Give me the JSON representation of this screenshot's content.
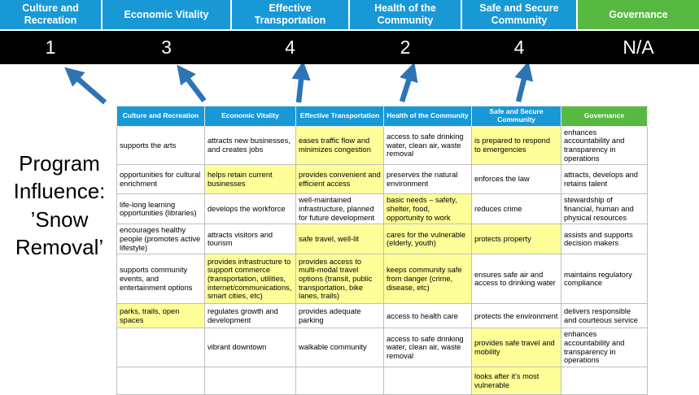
{
  "title": "Program Influence: ’Snow Removal’",
  "colors": {
    "header_blue": "#1899D6",
    "header_green": "#58B942",
    "score_bar_bg": "#000000",
    "highlight_yellow": "#FFFF99",
    "arrow_blue": "#2E74B5",
    "table_border": "#BFBFBF"
  },
  "summary": {
    "columns": [
      {
        "id": "culture-and-recreation",
        "label": "Culture and Recreation",
        "score": "1",
        "theme": "blue"
      },
      {
        "id": "economic-vitality",
        "label": "Economic Vitality",
        "score": "3",
        "theme": "blue"
      },
      {
        "id": "effective-transportation",
        "label": "Effective Transportation",
        "score": "4",
        "theme": "blue"
      },
      {
        "id": "health-of-the-community",
        "label": "Health of the Community",
        "score": "2",
        "theme": "blue"
      },
      {
        "id": "safe-and-secure-community",
        "label": "Safe and Secure Community",
        "score": "4",
        "theme": "blue"
      },
      {
        "id": "governance",
        "label": "Governance",
        "score": "N/A",
        "theme": "green"
      }
    ]
  },
  "matrix": {
    "headers": [
      {
        "id": "culture-and-recreation",
        "label": "Culture and Recreation",
        "theme": "blue"
      },
      {
        "id": "economic-vitality",
        "label": "Economic Vitality",
        "theme": "blue"
      },
      {
        "id": "effective-transportation",
        "label": "Effective Transportation",
        "theme": "blue"
      },
      {
        "id": "health-of-the-community",
        "label": "Health of the Community",
        "theme": "blue"
      },
      {
        "id": "safe-and-secure-community",
        "label": "Safe and Secure Community",
        "theme": "blue"
      },
      {
        "id": "governance",
        "label": "Governance",
        "theme": "green"
      }
    ],
    "rows": [
      [
        {
          "text": "supports the arts",
          "highlight": false
        },
        {
          "text": "attracts new businesses, and creates jobs",
          "highlight": false
        },
        {
          "text": "eases traffic flow and minimizes congestion",
          "highlight": true
        },
        {
          "text": "access to safe drinking water, clean air, waste removal",
          "highlight": false
        },
        {
          "text": "is prepared to respond to emergencies",
          "highlight": true
        },
        {
          "text": "enhances accountability and transparency in operations",
          "highlight": false
        }
      ],
      [
        {
          "text": "opportunities for cultural enrichment",
          "highlight": false
        },
        {
          "text": "helps retain current businesses",
          "highlight": true
        },
        {
          "text": "provides convenient and efficient access",
          "highlight": true
        },
        {
          "text": "preserves the natural environment",
          "highlight": false
        },
        {
          "text": "enforces the law",
          "highlight": false
        },
        {
          "text": "attracts, develops and retains talent",
          "highlight": false
        }
      ],
      [
        {
          "text": "life-long learning opportunities (libraries)",
          "highlight": false
        },
        {
          "text": "develops the workforce",
          "highlight": false
        },
        {
          "text": "well-maintained infrastructure, planned for future development",
          "highlight": false
        },
        {
          "text": "basic needs – safety, shelter, food, opportunity to work",
          "highlight": true
        },
        {
          "text": "reduces crime",
          "highlight": false
        },
        {
          "text": "stewardship of financial, human and physical resources",
          "highlight": false
        }
      ],
      [
        {
          "text": "encourages healthy people (promotes active lifestyle)",
          "highlight": false
        },
        {
          "text": "attracts visitors and tourism",
          "highlight": false
        },
        {
          "text": "safe travel, well-lit",
          "highlight": true
        },
        {
          "text": "cares for the vulnerable (elderly, youth)",
          "highlight": true
        },
        {
          "text": "protects property",
          "highlight": true
        },
        {
          "text": "assists and supports decision makers",
          "highlight": false
        }
      ],
      [
        {
          "text": "supports community events, and entertainment options",
          "highlight": false
        },
        {
          "text": "provides infrastructure to support commerce (transportation, utilities, internet/communications, smart cities, etc)",
          "highlight": true
        },
        {
          "text": "provides access to multi-modal travel options (transit, public transportation, bike lanes, trails)",
          "highlight": true
        },
        {
          "text": "keeps community safe from danger (crime, disease, etc)",
          "highlight": true
        },
        {
          "text": "ensures safe air and access to drinking water",
          "highlight": false
        },
        {
          "text": "maintains regulatory compliance",
          "highlight": false
        }
      ],
      [
        {
          "text": "parks, trails, open spaces",
          "highlight": true
        },
        {
          "text": "regulates growth and development",
          "highlight": false
        },
        {
          "text": "provides adequate parking",
          "highlight": false
        },
        {
          "text": "access to health care",
          "highlight": false
        },
        {
          "text": "protects the environment",
          "highlight": false
        },
        {
          "text": "delivers responsible and courteous service",
          "highlight": false
        }
      ],
      [
        {
          "text": "",
          "highlight": false
        },
        {
          "text": "vibrant downtown",
          "highlight": false
        },
        {
          "text": "walkable community",
          "highlight": false
        },
        {
          "text": "access to safe drinking water, clean air, waste removal",
          "highlight": false
        },
        {
          "text": "provides safe travel and mobility",
          "highlight": true
        },
        {
          "text": "enhances accountability and transparency in operations",
          "highlight": false
        }
      ],
      [
        {
          "text": "",
          "highlight": false
        },
        {
          "text": "",
          "highlight": false
        },
        {
          "text": "",
          "highlight": false
        },
        {
          "text": "",
          "highlight": false
        },
        {
          "text": "looks after it's most vulnerable",
          "highlight": true
        },
        {
          "text": "",
          "highlight": false
        }
      ]
    ]
  }
}
